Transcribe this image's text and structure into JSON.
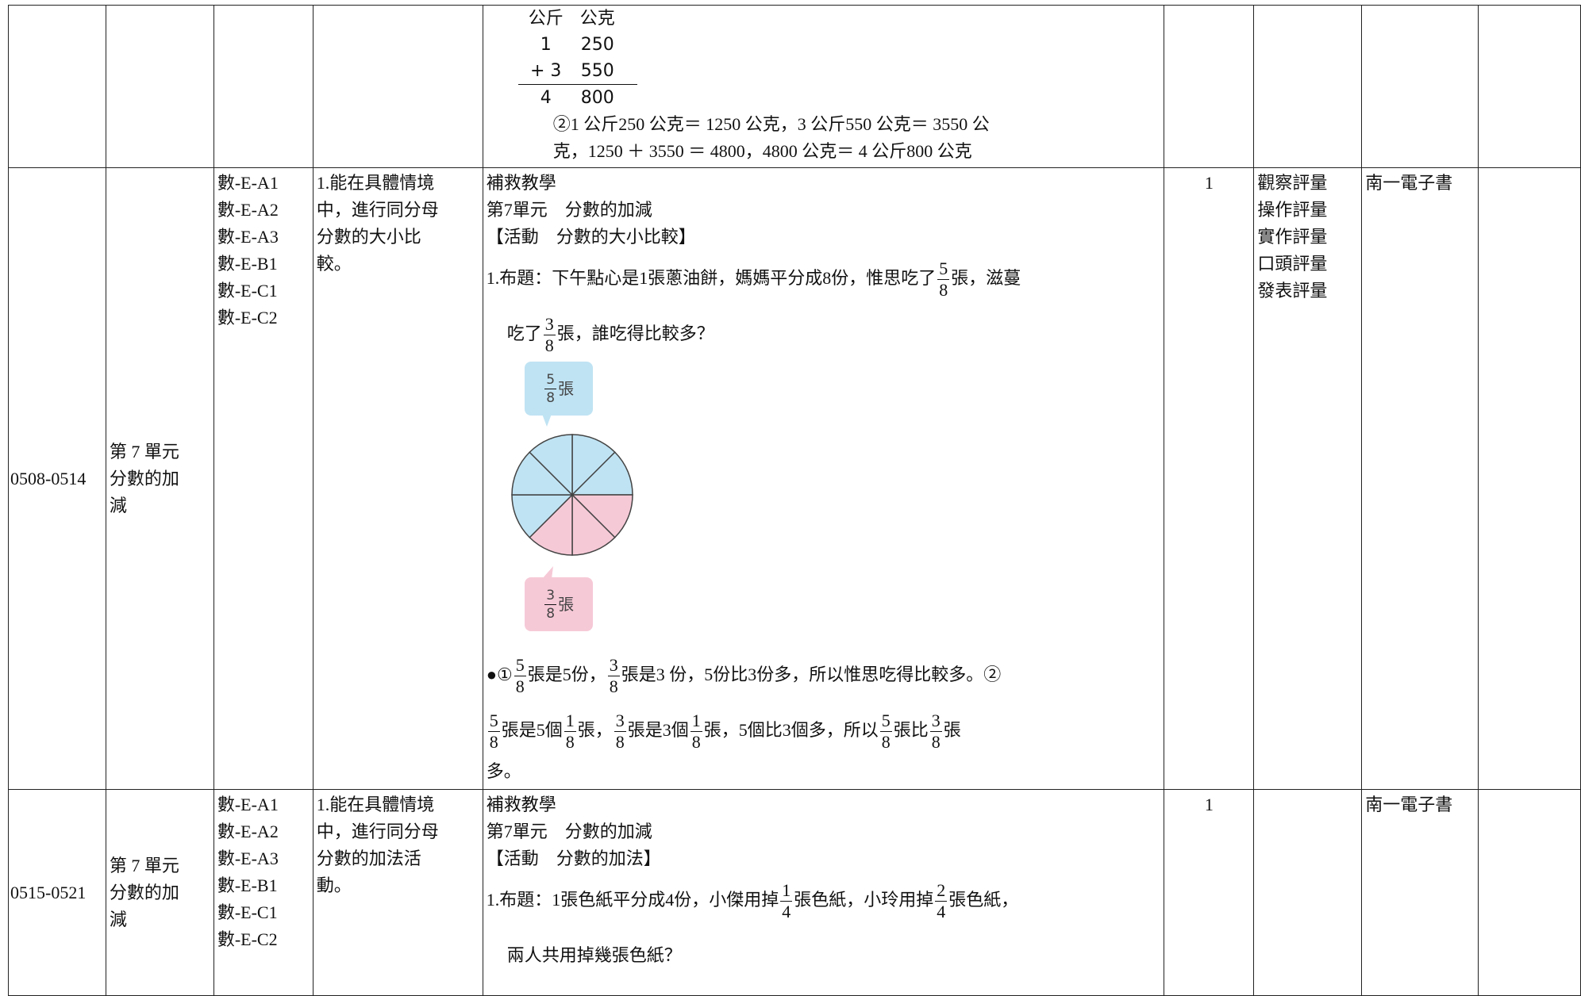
{
  "rows": [
    {
      "calc": {
        "header": [
          "公斤",
          "公克"
        ],
        "lines": [
          [
            "1",
            "250"
          ],
          [
            "+ 3",
            "550"
          ],
          [
            "4",
            "800"
          ]
        ]
      },
      "notes": [
        "②1 公斤250 公克＝ 1250 公克，3 公斤550 公克＝ 3550 公",
        "克，1250 ＋ 3550 ＝ 4800，4800 公克＝ 4 公斤800 公克"
      ]
    },
    {
      "week": "0508-0514",
      "unit": [
        "第 7 單元",
        "分數的加",
        "減"
      ],
      "codes": [
        "數-E-A1",
        "數-E-A2",
        "數-E-A3",
        "數-E-B1",
        "數-E-C1",
        "數-E-C2"
      ],
      "goal": [
        "1.能在具體情境",
        "中，進行同分母",
        "分數的大小比",
        "較。"
      ],
      "content": {
        "head": [
          "補救教學",
          "第7單元　分數的加減",
          "【活動　分數的大小比較】"
        ],
        "before": [
          [
            "1.布題：下午點心是1張蔥油餅，媽媽平分成8份，惟思吃了",
            {
              "n": "5",
              "d": "8"
            },
            "張，滋蔓"
          ],
          [
            "吃了",
            {
              "n": "3",
              "d": "8"
            },
            "張，誰吃得比較多？"
          ]
        ],
        "figure": {
          "top": {
            "n": "5",
            "d": "8",
            "unit": "張"
          },
          "bottom": {
            "n": "3",
            "d": "8",
            "unit": "張"
          }
        },
        "after": [
          [
            "●①",
            {
              "n": "5",
              "d": "8"
            },
            "張是5份，",
            {
              "n": "3",
              "d": "8"
            },
            "張是3 份，5份比3份多，所以惟思吃得比較多。②"
          ],
          [
            {
              "n": "5",
              "d": "8"
            },
            "張是5個",
            {
              "n": "1",
              "d": "8"
            },
            "張，",
            {
              "n": "3",
              "d": "8"
            },
            "張是3個",
            {
              "n": "1",
              "d": "8"
            },
            "張，5個比3個多，所以",
            {
              "n": "5",
              "d": "8"
            },
            "張比",
            {
              "n": "3",
              "d": "8"
            },
            "張"
          ],
          [
            "多。"
          ]
        ]
      },
      "hours": "1",
      "assess": [
        "觀察評量",
        "操作評量",
        "實作評量",
        "口頭評量",
        "發表評量"
      ],
      "resource": "南一電子書"
    },
    {
      "week": "0515-0521",
      "unit": [
        "第 7 單元",
        "分數的加",
        "減"
      ],
      "codes": [
        "數-E-A1",
        "數-E-A2",
        "數-E-A3",
        "數-E-B1",
        "數-E-C1",
        "數-E-C2"
      ],
      "goal": [
        "1.能在具體情境",
        "中，進行同分母",
        "分數的加法活",
        "動。"
      ],
      "content": {
        "head": [
          "補救教學",
          "第7單元　分數的加減",
          "【活動　分數的加法】"
        ],
        "before": [
          [
            "1.布題：1張色紙平分成4份，小傑用掉",
            {
              "n": "1",
              "d": "4"
            },
            "張色紙，小玲用掉",
            {
              "n": "2",
              "d": "4"
            },
            "張色紙，"
          ],
          [
            "兩人共用掉幾張色紙？"
          ]
        ]
      },
      "hours": "1",
      "assess": [],
      "resource": "南一電子書"
    }
  ]
}
